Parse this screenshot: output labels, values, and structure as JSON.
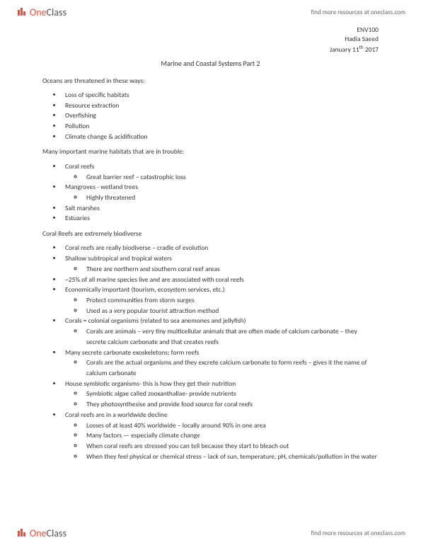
{
  "header": {
    "logo_one": "One",
    "logo_class": "Class",
    "link_text": "find more resources at oneclass.com"
  },
  "meta": {
    "course": "ENV100",
    "author": "Hadia Saeed",
    "date_prefix": "January 11",
    "date_sup": "th",
    "date_year": " 2017"
  },
  "title": "Marine and Coastal Systems Part 2",
  "sections": [
    {
      "intro": "Oceans are threatened in these ways:",
      "items": [
        {
          "text": "Loss of specific habitats"
        },
        {
          "text": "Resource extraction"
        },
        {
          "text": "Overfishing"
        },
        {
          "text": "Pollution"
        },
        {
          "text": "Climate change & acidification"
        }
      ]
    },
    {
      "intro": "Many important marine habitats that are in trouble:",
      "items": [
        {
          "text": "Coral reefs",
          "sub": [
            "Great barrier reef – catastrophic loss"
          ]
        },
        {
          "text": "Mangroves  - wetland trees",
          "sub": [
            "Highly threatened"
          ]
        },
        {
          "text": "Salt marshes"
        },
        {
          "text": "Estuaries"
        }
      ]
    },
    {
      "intro": "Coral Reefs are extremely biodiverse",
      "items": [
        {
          "text": "Coral reefs are really biodiverse – cradle of evolution"
        },
        {
          "text": "Shallow subtropical and tropical waters",
          "sub": [
            "There are northern and southern coral reef areas"
          ]
        },
        {
          "text": "~25% of all marine species live and are associated with coral reefs"
        },
        {
          "text": "Economically important (tourism, ecosystem services, etc.)",
          "sub": [
            "Protect communities from storm surges",
            "Used as a very popular tourist attraction method"
          ]
        },
        {
          "text": "Corals = colonial organisms (related to sea anemones and jellyfish)",
          "sub": [
            "Corals are animals – very tiny multicellular animals that are often made of calcium carbonate – they secrete calcium carbonate and that creates reefs"
          ]
        },
        {
          "text": "Many secrete carbonate exoskeletons; form reefs",
          "sub": [
            "Corals are the actual organisms and they excrete calcium carbonate to form reefs – gives it the name of calcium carbonate"
          ]
        },
        {
          "text": "House symbiotic organisms- this is how they get their nutrition",
          "sub": [
            "Symbiotic algae called zooxanthallae- provide nutrients",
            "They photosynthesise and provide food source for coral reefs"
          ]
        },
        {
          "text": "Coral reefs are in a worldwide decline",
          "sub": [
            "Losses of at least 40% worldwide – locally around 90% in one area",
            "Many factors  — especially climate change",
            "When coral reefs are stressed you can tell because they start to bleach out",
            "When they feel physical or chemical stress – lack of sun, temperature, pH, chemicals/pollution in the water"
          ]
        }
      ]
    }
  ],
  "footer": {
    "logo_one": "One",
    "logo_class": "Class",
    "link_text": "find more resources at oneclass.com"
  },
  "colors": {
    "logo_red": "#e74c3c",
    "text": "#333333",
    "link": "#666666",
    "background": "#ffffff"
  }
}
